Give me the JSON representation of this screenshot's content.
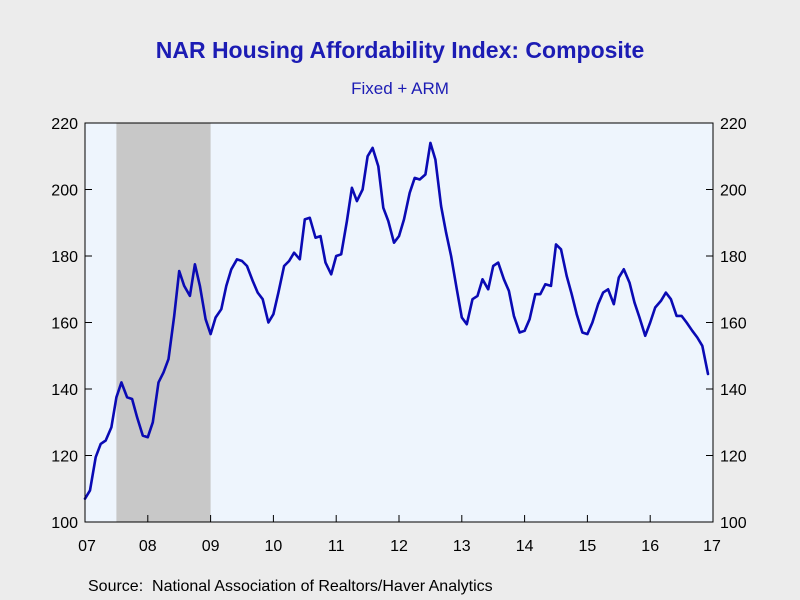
{
  "chart_data": {
    "type": "line",
    "title": "NAR Housing Affordability Index: Composite",
    "subtitle": "Fixed + ARM",
    "source": "Source:  National Association of Realtors/Haver Analytics",
    "ylim": [
      100,
      220
    ],
    "yticks": [
      "100",
      "120",
      "140",
      "160",
      "180",
      "200",
      "220"
    ],
    "xlim": [
      2007.0,
      2017.0
    ],
    "xticks": [
      "07",
      "08",
      "09",
      "10",
      "11",
      "12",
      "13",
      "14",
      "15",
      "16",
      "17"
    ],
    "recession": {
      "start": 2007.5,
      "end": 2009.0
    },
    "colors": {
      "line": "#0a0ab4",
      "plot_bg": "#eef5fd",
      "recession": "#c8c8c8",
      "title": "#1c1cb4"
    },
    "series": [
      {
        "x": [
          2007.0,
          2007.08,
          2007.17,
          2007.25,
          2007.33,
          2007.42,
          2007.5,
          2007.58,
          2007.67,
          2007.75,
          2007.83,
          2007.92,
          2008.0,
          2008.08,
          2008.17,
          2008.25,
          2008.33,
          2008.42,
          2008.5,
          2008.58,
          2008.67,
          2008.75,
          2008.83,
          2008.92,
          2009.0,
          2009.08,
          2009.17,
          2009.25,
          2009.33,
          2009.42,
          2009.5,
          2009.58,
          2009.67,
          2009.75,
          2009.83,
          2009.92,
          2010.0,
          2010.08,
          2010.17,
          2010.25,
          2010.33,
          2010.42,
          2010.5,
          2010.58,
          2010.67,
          2010.75,
          2010.83,
          2010.92,
          2011.0,
          2011.08,
          2011.17,
          2011.25,
          2011.33,
          2011.42,
          2011.5,
          2011.58,
          2011.67,
          2011.75,
          2011.83,
          2011.92,
          2012.0,
          2012.08,
          2012.17,
          2012.25,
          2012.33,
          2012.42,
          2012.5,
          2012.58,
          2012.67,
          2012.75,
          2012.83,
          2012.92,
          2013.0,
          2013.08,
          2013.17,
          2013.25,
          2013.33,
          2013.42,
          2013.5,
          2013.58,
          2013.67,
          2013.75,
          2013.83,
          2013.92,
          2014.0,
          2014.08,
          2014.17,
          2014.25,
          2014.33,
          2014.42,
          2014.5,
          2014.58,
          2014.67,
          2014.75,
          2014.83,
          2014.92,
          2015.0,
          2015.08,
          2015.17,
          2015.25,
          2015.33,
          2015.42,
          2015.5,
          2015.58,
          2015.67,
          2015.75,
          2015.83,
          2015.92,
          2016.0,
          2016.08,
          2016.17,
          2016.25,
          2016.33,
          2016.42,
          2016.5,
          2016.58,
          2016.67,
          2016.75,
          2016.83,
          2016.92
        ],
        "y": [
          107,
          109.5,
          119.5,
          123.5,
          124.5,
          128.5,
          137.5,
          142,
          137.5,
          137,
          131.5,
          126,
          125.5,
          130,
          142,
          145,
          149,
          162,
          175.5,
          171,
          168,
          177.5,
          171,
          161,
          156.5,
          161.5,
          164,
          171,
          176,
          179,
          178.5,
          177,
          172.5,
          169,
          167,
          160,
          162.5,
          169,
          177,
          178.5,
          181,
          179,
          191,
          191.5,
          185.5,
          186,
          178,
          174.5,
          180,
          180.5,
          190.5,
          200.5,
          196.5,
          200,
          210,
          212.5,
          207,
          194.5,
          190.5,
          184,
          186,
          191,
          199,
          203.5,
          203,
          204.5,
          214,
          209,
          195,
          187,
          180,
          170,
          161.5,
          159.5,
          167,
          168,
          173,
          170,
          177,
          178,
          173,
          169.5,
          162,
          157,
          157.5,
          161,
          168.5,
          168.5,
          171.5,
          171,
          183.5,
          182,
          174,
          168.5,
          162.5,
          157,
          156.5,
          160,
          165.5,
          169,
          170,
          165.5,
          173.5,
          176,
          172,
          166,
          161.5,
          156,
          160,
          164.5,
          166.5,
          169,
          167,
          162,
          162,
          160,
          157.5,
          155.5,
          153,
          144.5
        ]
      }
    ]
  }
}
